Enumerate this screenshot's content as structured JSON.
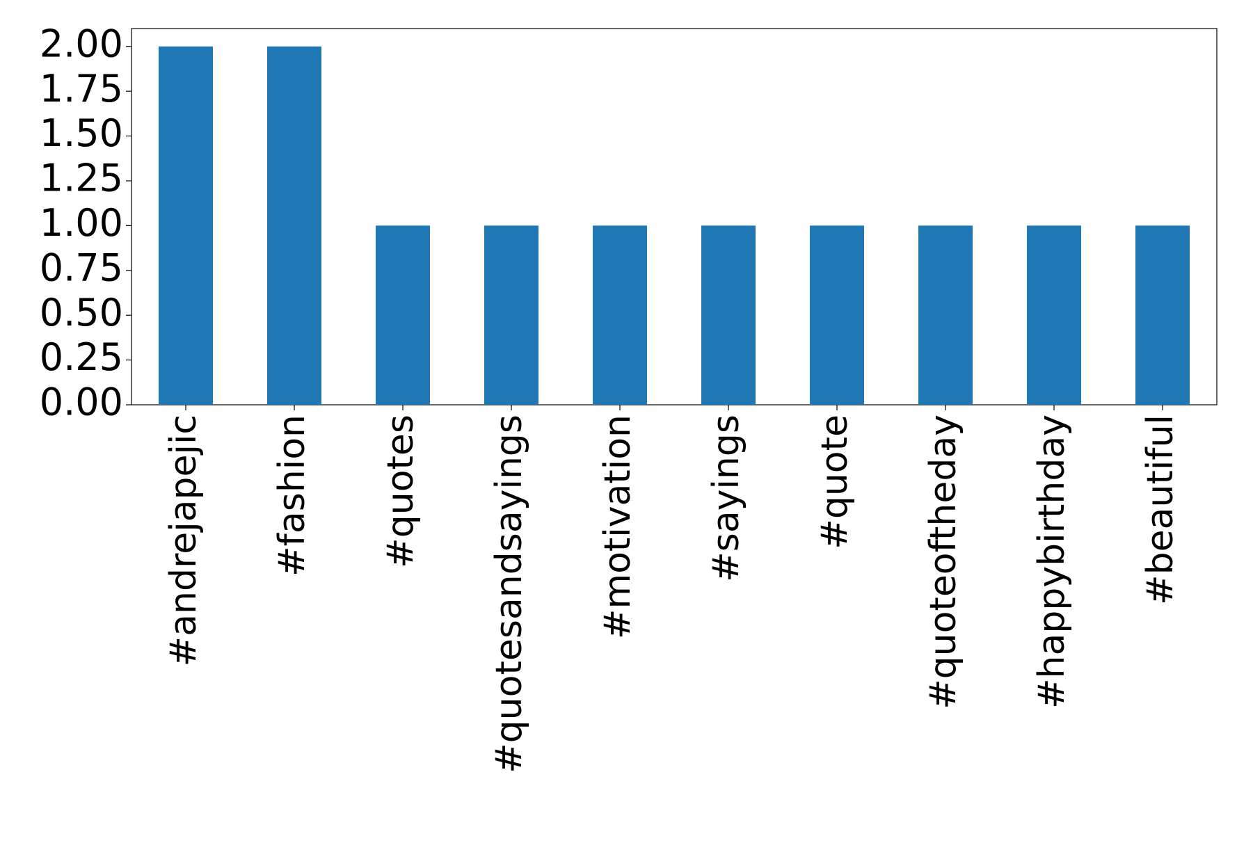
{
  "chart_data": {
    "type": "bar",
    "categories": [
      "#andrejapejic",
      "#fashion",
      "#quotes",
      "#quotesandsayings",
      "#motivation",
      "#sayings",
      "#quote",
      "#quoteoftheday",
      "#happybirthday",
      "#beautiful"
    ],
    "values": [
      2,
      2,
      1,
      1,
      1,
      1,
      1,
      1,
      1,
      1
    ],
    "color": "#1f77b4",
    "ylim": [
      0,
      2.1
    ],
    "yticks": [
      {
        "value": 0,
        "label": "0.00"
      },
      0.25,
      {
        "value": 0.5,
        "label": "0.50"
      },
      0.75,
      {
        "value": 1,
        "label": "1.00"
      },
      1.25,
      {
        "value": 1.5,
        "label": "1.50"
      },
      1.75,
      {
        "value": 2,
        "label": "2.00"
      }
    ],
    "grid": false
  }
}
